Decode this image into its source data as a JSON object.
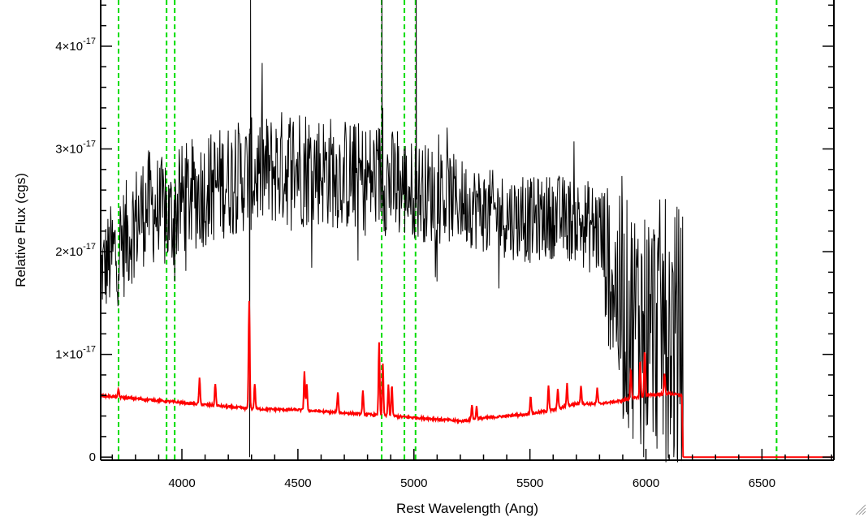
{
  "chart_data": {
    "type": "line",
    "title": "",
    "xlabel": "Rest Wavelength (Ang)",
    "ylabel": "Relative Flux (cgs)",
    "xlim": [
      3650,
      6810
    ],
    "ylim": [
      -0.03,
      4.45
    ],
    "y_scale_note": "values in units of 1e-17",
    "grid": false,
    "legend": "none",
    "x_ticks": [
      {
        "value": 4000,
        "label": "4000"
      },
      {
        "value": 4500,
        "label": "4500"
      },
      {
        "value": 5000,
        "label": "5000"
      },
      {
        "value": 5500,
        "label": "5500"
      },
      {
        "value": 6000,
        "label": "6000"
      },
      {
        "value": 6500,
        "label": "6500"
      }
    ],
    "y_ticks": [
      {
        "value": 0,
        "mantissa": "0",
        "exponent": ""
      },
      {
        "value": 1,
        "mantissa": "1×10",
        "exponent": "-17"
      },
      {
        "value": 2,
        "mantissa": "2×10",
        "exponent": "-17"
      },
      {
        "value": 3,
        "mantissa": "3×10",
        "exponent": "-17"
      },
      {
        "value": 4,
        "mantissa": "4×10",
        "exponent": "-17"
      }
    ],
    "reference_lines": {
      "color": "#00dd00",
      "style": "dashed",
      "x": [
        3727,
        3934,
        3969,
        4861,
        4959,
        5007,
        6563
      ]
    },
    "series": [
      {
        "color": "#000000",
        "role": "observed spectrum",
        "x_range": [
          3650,
          6160
        ],
        "envelope_x": [
          3650,
          3700,
          3750,
          3800,
          3850,
          3900,
          3950,
          4000,
          4100,
          4200,
          4300,
          4400,
          4500,
          4600,
          4700,
          4800,
          4860,
          4900,
          5000,
          5100,
          5200,
          5300,
          5400,
          5500,
          5600,
          5700,
          5800,
          5850,
          5900,
          6000,
          6100,
          6150
        ],
        "envelope_mean": [
          1.8,
          1.95,
          2.1,
          2.3,
          2.45,
          2.4,
          2.3,
          2.5,
          2.6,
          2.7,
          2.75,
          2.8,
          2.85,
          2.8,
          2.75,
          2.7,
          2.75,
          2.65,
          2.6,
          2.55,
          2.5,
          2.4,
          2.35,
          2.3,
          2.35,
          2.3,
          2.2,
          1.8,
          1.4,
          1.3,
          1.25,
          1.2
        ],
        "envelope_amplitude": [
          0.3,
          0.4,
          0.4,
          0.4,
          0.4,
          0.4,
          0.4,
          0.4,
          0.4,
          0.4,
          0.4,
          0.4,
          0.45,
          0.4,
          0.4,
          0.4,
          0.4,
          0.4,
          0.35,
          0.35,
          0.3,
          0.3,
          0.3,
          0.3,
          0.3,
          0.3,
          0.35,
          0.6,
          0.8,
          0.9,
          0.9,
          0.9
        ],
        "spikes": [
          {
            "x": 4292,
            "y": 0.0
          },
          {
            "x": 4296,
            "y": 4.45
          },
          {
            "x": 4862,
            "y": 4.45
          },
          {
            "x": 4866,
            "y": 3.4
          },
          {
            "x": 5010,
            "y": 4.45
          },
          {
            "x": 5015,
            "y": 2.4
          },
          {
            "x": 5990,
            "y": 0.0
          },
          {
            "x": 6120,
            "y": 0.0
          },
          {
            "x": 6135,
            "y": 0.0
          }
        ],
        "after_x": 6160,
        "after_value": 0.0
      },
      {
        "color": "#ff0000",
        "role": "model/continuum",
        "continuum_x": [
          3650,
          3800,
          4000,
          4200,
          4300,
          4500,
          4700,
          4900,
          5100,
          5200,
          5300,
          5400,
          5500,
          5600,
          5700,
          5800,
          5900,
          6000,
          6100,
          6155,
          6160,
          6810
        ],
        "continuum_y": [
          0.6,
          0.57,
          0.53,
          0.49,
          0.47,
          0.46,
          0.43,
          0.4,
          0.37,
          0.35,
          0.38,
          0.4,
          0.42,
          0.46,
          0.52,
          0.52,
          0.55,
          0.6,
          0.62,
          0.6,
          0.0,
          0.0
        ],
        "emission_lines": [
          {
            "x": 3727,
            "peak": 0.07
          },
          {
            "x": 4076,
            "peak": 0.25
          },
          {
            "x": 4144,
            "peak": 0.22
          },
          {
            "x": 4290,
            "peak": 1.05
          },
          {
            "x": 4314,
            "peak": 0.25
          },
          {
            "x": 4528,
            "peak": 0.38
          },
          {
            "x": 4538,
            "peak": 0.25
          },
          {
            "x": 4672,
            "peak": 0.2
          },
          {
            "x": 4780,
            "peak": 0.22
          },
          {
            "x": 4850,
            "peak": 0.7
          },
          {
            "x": 4866,
            "peak": 0.5
          },
          {
            "x": 4890,
            "peak": 0.3
          },
          {
            "x": 4905,
            "peak": 0.3
          },
          {
            "x": 5250,
            "peak": 0.15
          },
          {
            "x": 5270,
            "peak": 0.12
          },
          {
            "x": 5503,
            "peak": 0.18
          },
          {
            "x": 5580,
            "peak": 0.25
          },
          {
            "x": 5620,
            "peak": 0.2
          },
          {
            "x": 5660,
            "peak": 0.22
          },
          {
            "x": 5720,
            "peak": 0.18
          },
          {
            "x": 5790,
            "peak": 0.15
          },
          {
            "x": 5935,
            "peak": 0.3
          },
          {
            "x": 5975,
            "peak": 0.35
          },
          {
            "x": 5995,
            "peak": 0.45
          },
          {
            "x": 6080,
            "peak": 0.2
          }
        ]
      }
    ]
  }
}
